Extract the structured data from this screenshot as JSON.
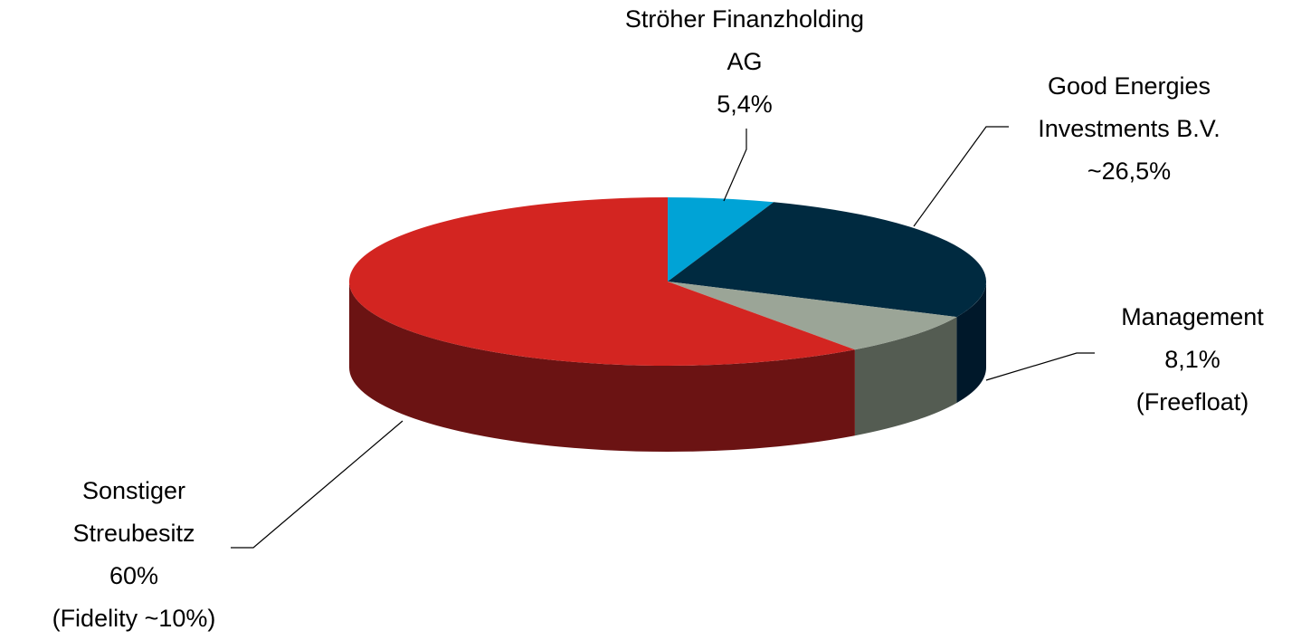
{
  "chart_data": {
    "type": "pie",
    "categories": [
      "Ströher Finanzholding AG",
      "Good Energies Investments B.V.",
      "Management",
      "Sonstiger Streubesitz"
    ],
    "values": [
      5.4,
      26.5,
      8.1,
      60
    ],
    "value_labels": [
      "5,4%",
      "~26,5%",
      "8,1%",
      "60%"
    ],
    "notes": [
      null,
      null,
      "(Freefloat)",
      "(Fidelity ~10%)"
    ],
    "colors": [
      "#00a3d6",
      "#002a40",
      "#9ba597",
      "#d32521"
    ],
    "side_colors": [
      "#006a8c",
      "#00182a",
      "#545c52",
      "#6b1313"
    ],
    "three_d": true
  }
}
